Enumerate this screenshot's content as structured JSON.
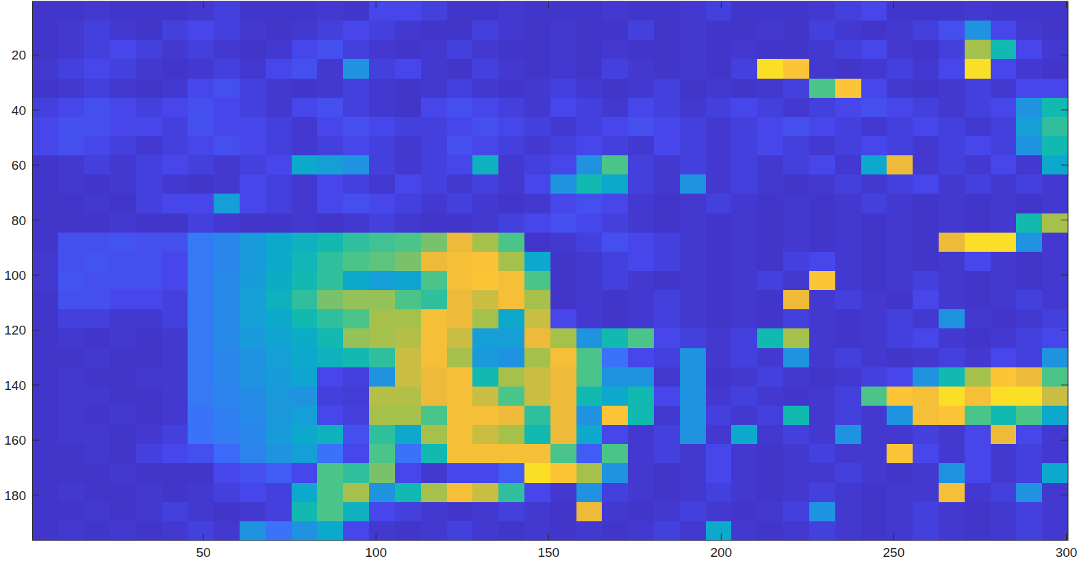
{
  "chart_data": {
    "type": "heatmap",
    "xlim": [
      0.5,
      300.5
    ],
    "ylim": [
      0.5,
      196.5
    ],
    "xticks": [
      50,
      100,
      150,
      200,
      250,
      300
    ],
    "yticks": [
      20,
      40,
      60,
      80,
      100,
      120,
      140,
      160,
      180
    ],
    "clim": [
      0,
      1
    ],
    "x_edges": [
      0.5,
      8,
      15.5,
      23,
      30.5,
      38,
      45.5,
      53,
      60.5,
      68,
      75.5,
      83,
      90.5,
      98,
      105.5,
      113,
      120.5,
      128,
      135.5,
      143,
      150.5,
      158,
      165.5,
      173,
      180.5,
      188,
      195.5,
      203,
      210.5,
      218,
      225.5,
      233,
      240.5,
      248,
      255.5,
      263,
      270.5,
      278,
      285.5,
      293,
      300.5
    ],
    "y_edges": [
      0.5,
      7.5,
      14.5,
      21.5,
      28.5,
      35.5,
      42.5,
      49.5,
      56.5,
      63.5,
      70.5,
      77.5,
      84.5,
      91.5,
      98.5,
      105.5,
      112.5,
      119.5,
      126.5,
      133.5,
      140.5,
      147.5,
      154.5,
      161.5,
      168.5,
      175.5,
      182.5,
      189.5,
      196.5
    ],
    "z": [
      [
        0.05,
        0.05,
        0.06,
        0.05,
        0.05,
        0.05,
        0.06,
        0.08,
        0.05,
        0.05,
        0.05,
        0.06,
        0.05,
        0.1,
        0.1,
        0.08,
        0.05,
        0.05,
        0.06,
        0.05,
        0.05,
        0.05,
        0.06,
        0.05,
        0.05,
        0.06,
        0.08,
        0.05,
        0.05,
        0.05,
        0.06,
        0.08,
        0.1,
        0.05,
        0.05,
        0.05,
        0.06,
        0.05,
        0.05,
        0.05
      ],
      [
        0.05,
        0.06,
        0.08,
        0.06,
        0.05,
        0.08,
        0.1,
        0.08,
        0.06,
        0.05,
        0.06,
        0.08,
        0.1,
        0.08,
        0.06,
        0.05,
        0.05,
        0.08,
        0.06,
        0.05,
        0.06,
        0.05,
        0.05,
        0.08,
        0.05,
        0.06,
        0.05,
        0.05,
        0.06,
        0.05,
        0.08,
        0.06,
        0.05,
        0.06,
        0.08,
        0.12,
        0.3,
        0.1,
        0.06,
        0.05
      ],
      [
        0.05,
        0.06,
        0.08,
        0.1,
        0.08,
        0.06,
        0.08,
        0.06,
        0.05,
        0.06,
        0.1,
        0.12,
        0.08,
        0.06,
        0.05,
        0.06,
        0.08,
        0.06,
        0.05,
        0.05,
        0.06,
        0.05,
        0.06,
        0.05,
        0.05,
        0.06,
        0.05,
        0.06,
        0.05,
        0.05,
        0.06,
        0.08,
        0.1,
        0.06,
        0.05,
        0.08,
        0.7,
        0.5,
        0.1,
        0.06
      ],
      [
        0.06,
        0.08,
        0.1,
        0.08,
        0.06,
        0.05,
        0.06,
        0.08,
        0.06,
        0.1,
        0.12,
        0.06,
        0.3,
        0.08,
        0.1,
        0.06,
        0.05,
        0.08,
        0.06,
        0.05,
        0.06,
        0.05,
        0.08,
        0.06,
        0.05,
        0.06,
        0.05,
        0.08,
        0.95,
        0.9,
        0.06,
        0.05,
        0.06,
        0.08,
        0.06,
        0.1,
        0.95,
        0.1,
        0.06,
        0.05
      ],
      [
        0.05,
        0.06,
        0.08,
        0.06,
        0.05,
        0.06,
        0.1,
        0.12,
        0.08,
        0.06,
        0.05,
        0.06,
        0.08,
        0.06,
        0.05,
        0.06,
        0.08,
        0.06,
        0.05,
        0.06,
        0.08,
        0.06,
        0.05,
        0.06,
        0.08,
        0.05,
        0.06,
        0.05,
        0.06,
        0.08,
        0.6,
        0.9,
        0.1,
        0.06,
        0.05,
        0.06,
        0.08,
        0.06,
        0.1,
        0.1
      ],
      [
        0.08,
        0.1,
        0.12,
        0.1,
        0.08,
        0.1,
        0.12,
        0.1,
        0.08,
        0.06,
        0.1,
        0.12,
        0.08,
        0.06,
        0.05,
        0.1,
        0.12,
        0.1,
        0.08,
        0.06,
        0.1,
        0.08,
        0.06,
        0.1,
        0.08,
        0.06,
        0.08,
        0.1,
        0.08,
        0.06,
        0.08,
        0.1,
        0.12,
        0.1,
        0.08,
        0.06,
        0.08,
        0.1,
        0.3,
        0.5
      ],
      [
        0.1,
        0.12,
        0.12,
        0.1,
        0.1,
        0.08,
        0.12,
        0.1,
        0.1,
        0.08,
        0.06,
        0.1,
        0.12,
        0.1,
        0.08,
        0.08,
        0.1,
        0.12,
        0.1,
        0.08,
        0.06,
        0.08,
        0.1,
        0.12,
        0.1,
        0.08,
        0.06,
        0.08,
        0.1,
        0.12,
        0.1,
        0.08,
        0.06,
        0.08,
        0.1,
        0.08,
        0.06,
        0.08,
        0.35,
        0.55
      ],
      [
        0.1,
        0.12,
        0.1,
        0.08,
        0.06,
        0.08,
        0.1,
        0.12,
        0.1,
        0.08,
        0.06,
        0.08,
        0.1,
        0.08,
        0.06,
        0.08,
        0.12,
        0.1,
        0.08,
        0.06,
        0.08,
        0.1,
        0.08,
        0.06,
        0.1,
        0.08,
        0.06,
        0.08,
        0.1,
        0.08,
        0.06,
        0.08,
        0.1,
        0.08,
        0.06,
        0.08,
        0.1,
        0.08,
        0.3,
        0.5
      ],
      [
        0.05,
        0.06,
        0.08,
        0.06,
        0.08,
        0.1,
        0.08,
        0.06,
        0.08,
        0.1,
        0.4,
        0.35,
        0.3,
        0.08,
        0.06,
        0.08,
        0.1,
        0.45,
        0.06,
        0.08,
        0.1,
        0.3,
        0.6,
        0.08,
        0.06,
        0.08,
        0.06,
        0.08,
        0.06,
        0.08,
        0.1,
        0.06,
        0.4,
        0.8,
        0.06,
        0.08,
        0.06,
        0.1,
        0.06,
        0.4
      ],
      [
        0.05,
        0.06,
        0.05,
        0.06,
        0.08,
        0.06,
        0.05,
        0.06,
        0.1,
        0.08,
        0.06,
        0.1,
        0.08,
        0.06,
        0.1,
        0.08,
        0.06,
        0.08,
        0.06,
        0.1,
        0.3,
        0.5,
        0.4,
        0.08,
        0.06,
        0.3,
        0.06,
        0.08,
        0.06,
        0.05,
        0.06,
        0.08,
        0.06,
        0.08,
        0.1,
        0.06,
        0.08,
        0.06,
        0.08,
        0.06
      ],
      [
        0.05,
        0.05,
        0.06,
        0.05,
        0.08,
        0.1,
        0.1,
        0.35,
        0.1,
        0.08,
        0.06,
        0.1,
        0.12,
        0.1,
        0.08,
        0.06,
        0.08,
        0.06,
        0.05,
        0.06,
        0.1,
        0.12,
        0.1,
        0.06,
        0.05,
        0.06,
        0.08,
        0.06,
        0.05,
        0.06,
        0.05,
        0.06,
        0.08,
        0.06,
        0.05,
        0.06,
        0.05,
        0.06,
        0.05,
        0.06
      ],
      [
        0.05,
        0.05,
        0.05,
        0.06,
        0.05,
        0.05,
        0.08,
        0.06,
        0.05,
        0.05,
        0.06,
        0.05,
        0.06,
        0.08,
        0.06,
        0.05,
        0.05,
        0.06,
        0.08,
        0.1,
        0.12,
        0.1,
        0.08,
        0.06,
        0.05,
        0.06,
        0.05,
        0.06,
        0.05,
        0.06,
        0.05,
        0.06,
        0.05,
        0.06,
        0.05,
        0.06,
        0.05,
        0.06,
        0.5,
        0.7
      ],
      [
        0.05,
        0.12,
        0.12,
        0.13,
        0.12,
        0.12,
        0.22,
        0.26,
        0.33,
        0.4,
        0.45,
        0.5,
        0.55,
        0.58,
        0.6,
        0.65,
        0.8,
        0.7,
        0.6,
        0.05,
        0.06,
        0.08,
        0.12,
        0.1,
        0.08,
        0.06,
        0.05,
        0.06,
        0.05,
        0.06,
        0.05,
        0.06,
        0.05,
        0.06,
        0.05,
        0.8,
        0.95,
        0.95,
        0.3,
        0.06
      ],
      [
        0.06,
        0.12,
        0.13,
        0.12,
        0.12,
        0.1,
        0.22,
        0.26,
        0.33,
        0.4,
        0.48,
        0.55,
        0.6,
        0.62,
        0.65,
        0.8,
        0.85,
        0.88,
        0.7,
        0.4,
        0.05,
        0.06,
        0.08,
        0.1,
        0.08,
        0.06,
        0.05,
        0.06,
        0.05,
        0.08,
        0.1,
        0.06,
        0.05,
        0.06,
        0.05,
        0.06,
        0.1,
        0.06,
        0.05,
        0.06
      ],
      [
        0.06,
        0.13,
        0.12,
        0.12,
        0.12,
        0.1,
        0.22,
        0.27,
        0.34,
        0.42,
        0.5,
        0.55,
        0.4,
        0.35,
        0.38,
        0.6,
        0.85,
        0.9,
        0.85,
        0.6,
        0.05,
        0.06,
        0.08,
        0.06,
        0.05,
        0.06,
        0.05,
        0.06,
        0.08,
        0.06,
        0.9,
        0.06,
        0.05,
        0.06,
        0.08,
        0.06,
        0.05,
        0.06,
        0.05,
        0.06
      ],
      [
        0.05,
        0.12,
        0.12,
        0.1,
        0.1,
        0.08,
        0.22,
        0.27,
        0.35,
        0.45,
        0.55,
        0.65,
        0.68,
        0.68,
        0.6,
        0.55,
        0.8,
        0.75,
        0.85,
        0.7,
        0.05,
        0.06,
        0.05,
        0.06,
        0.08,
        0.06,
        0.05,
        0.06,
        0.05,
        0.8,
        0.06,
        0.08,
        0.06,
        0.05,
        0.1,
        0.06,
        0.05,
        0.06,
        0.08,
        0.06
      ],
      [
        0.05,
        0.08,
        0.08,
        0.06,
        0.06,
        0.08,
        0.22,
        0.27,
        0.35,
        0.4,
        0.5,
        0.55,
        0.6,
        0.7,
        0.7,
        0.85,
        0.8,
        0.7,
        0.4,
        0.75,
        0.1,
        0.06,
        0.05,
        0.06,
        0.08,
        0.06,
        0.05,
        0.06,
        0.05,
        0.08,
        0.06,
        0.05,
        0.06,
        0.08,
        0.06,
        0.3,
        0.06,
        0.05,
        0.06,
        0.08
      ],
      [
        0.05,
        0.06,
        0.05,
        0.06,
        0.05,
        0.06,
        0.22,
        0.27,
        0.33,
        0.38,
        0.42,
        0.5,
        0.68,
        0.7,
        0.72,
        0.85,
        0.75,
        0.35,
        0.35,
        0.8,
        0.7,
        0.3,
        0.5,
        0.6,
        0.1,
        0.08,
        0.06,
        0.08,
        0.5,
        0.7,
        0.06,
        0.05,
        0.06,
        0.08,
        0.1,
        0.06,
        0.05,
        0.06,
        0.08,
        0.1
      ],
      [
        0.05,
        0.05,
        0.06,
        0.05,
        0.05,
        0.06,
        0.22,
        0.26,
        0.3,
        0.35,
        0.4,
        0.45,
        0.5,
        0.55,
        0.75,
        0.85,
        0.7,
        0.33,
        0.3,
        0.7,
        0.85,
        0.6,
        0.2,
        0.1,
        0.08,
        0.3,
        0.06,
        0.08,
        0.06,
        0.3,
        0.06,
        0.08,
        0.06,
        0.05,
        0.06,
        0.08,
        0.06,
        0.1,
        0.08,
        0.3
      ],
      [
        0.05,
        0.06,
        0.05,
        0.05,
        0.06,
        0.06,
        0.22,
        0.26,
        0.3,
        0.34,
        0.38,
        0.1,
        0.08,
        0.3,
        0.75,
        0.8,
        0.85,
        0.5,
        0.7,
        0.75,
        0.8,
        0.6,
        0.3,
        0.3,
        0.06,
        0.3,
        0.05,
        0.06,
        0.08,
        0.06,
        0.05,
        0.06,
        0.08,
        0.1,
        0.3,
        0.5,
        0.7,
        0.9,
        0.8,
        0.6
      ],
      [
        0.05,
        0.06,
        0.06,
        0.05,
        0.05,
        0.06,
        0.22,
        0.25,
        0.28,
        0.32,
        0.3,
        0.08,
        0.07,
        0.72,
        0.72,
        0.8,
        0.85,
        0.75,
        0.6,
        0.75,
        0.8,
        0.5,
        0.4,
        0.5,
        0.1,
        0.3,
        0.06,
        0.08,
        0.06,
        0.05,
        0.06,
        0.08,
        0.6,
        0.9,
        0.85,
        0.95,
        0.85,
        0.95,
        0.95,
        0.75
      ],
      [
        0.05,
        0.06,
        0.05,
        0.06,
        0.05,
        0.06,
        0.2,
        0.24,
        0.27,
        0.32,
        0.35,
        0.1,
        0.08,
        0.7,
        0.7,
        0.6,
        0.85,
        0.85,
        0.8,
        0.55,
        0.8,
        0.3,
        0.9,
        0.5,
        0.06,
        0.3,
        0.08,
        0.06,
        0.08,
        0.5,
        0.06,
        0.08,
        0.06,
        0.3,
        0.85,
        0.9,
        0.6,
        0.5,
        0.6,
        0.4
      ],
      [
        0.05,
        0.06,
        0.06,
        0.05,
        0.06,
        0.08,
        0.2,
        0.23,
        0.26,
        0.33,
        0.4,
        0.45,
        0.12,
        0.55,
        0.4,
        0.7,
        0.85,
        0.75,
        0.7,
        0.5,
        0.8,
        0.4,
        0.1,
        0.06,
        0.08,
        0.3,
        0.06,
        0.4,
        0.06,
        0.08,
        0.06,
        0.3,
        0.06,
        0.06,
        0.08,
        0.06,
        0.1,
        0.8,
        0.1,
        0.06
      ],
      [
        0.05,
        0.05,
        0.06,
        0.05,
        0.08,
        0.1,
        0.12,
        0.18,
        0.25,
        0.3,
        0.35,
        0.2,
        0.1,
        0.6,
        0.2,
        0.5,
        0.85,
        0.85,
        0.85,
        0.85,
        0.6,
        0.15,
        0.6,
        0.06,
        0.08,
        0.06,
        0.1,
        0.06,
        0.05,
        0.06,
        0.08,
        0.06,
        0.06,
        0.9,
        0.1,
        0.06,
        0.1,
        0.06,
        0.08,
        0.06
      ],
      [
        0.05,
        0.05,
        0.05,
        0.06,
        0.05,
        0.05,
        0.05,
        0.1,
        0.12,
        0.15,
        0.1,
        0.6,
        0.55,
        0.65,
        0.1,
        0.06,
        0.1,
        0.1,
        0.15,
        0.95,
        0.9,
        0.7,
        0.3,
        0.06,
        0.05,
        0.06,
        0.1,
        0.06,
        0.05,
        0.06,
        0.06,
        0.08,
        0.06,
        0.05,
        0.06,
        0.3,
        0.1,
        0.06,
        0.08,
        0.4
      ],
      [
        0.05,
        0.06,
        0.05,
        0.05,
        0.06,
        0.05,
        0.06,
        0.08,
        0.1,
        0.08,
        0.4,
        0.6,
        0.7,
        0.3,
        0.5,
        0.7,
        0.85,
        0.75,
        0.55,
        0.1,
        0.06,
        0.3,
        0.08,
        0.06,
        0.05,
        0.06,
        0.08,
        0.06,
        0.05,
        0.06,
        0.08,
        0.06,
        0.05,
        0.06,
        0.06,
        0.85,
        0.06,
        0.08,
        0.3,
        0.06
      ],
      [
        0.05,
        0.05,
        0.06,
        0.05,
        0.06,
        0.08,
        0.06,
        0.05,
        0.06,
        0.08,
        0.5,
        0.6,
        0.45,
        0.1,
        0.08,
        0.06,
        0.05,
        0.06,
        0.08,
        0.06,
        0.05,
        0.8,
        0.06,
        0.05,
        0.06,
        0.08,
        0.06,
        0.05,
        0.06,
        0.08,
        0.3,
        0.06,
        0.05,
        0.06,
        0.08,
        0.06,
        0.05,
        0.06,
        0.08,
        0.06
      ],
      [
        0.05,
        0.06,
        0.05,
        0.06,
        0.05,
        0.06,
        0.08,
        0.06,
        0.3,
        0.2,
        0.3,
        0.4,
        0.1,
        0.06,
        0.05,
        0.06,
        0.08,
        0.06,
        0.05,
        0.06,
        0.05,
        0.06,
        0.05,
        0.06,
        0.08,
        0.06,
        0.4,
        0.06,
        0.05,
        0.06,
        0.08,
        0.06,
        0.05,
        0.06,
        0.08,
        0.06,
        0.05,
        0.06,
        0.08,
        0.06
      ]
    ]
  }
}
